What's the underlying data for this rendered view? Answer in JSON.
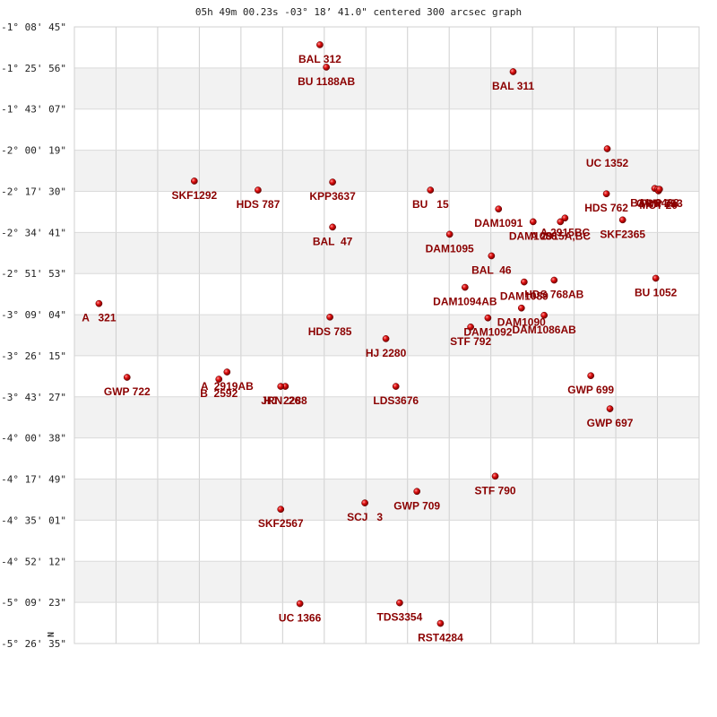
{
  "chart_data": {
    "type": "scatter",
    "title": "05h 49m 00.23s -03° 18’ 41.0\" centered 300 arcsec graph",
    "north_marker": "N",
    "x_range": [
      0,
      300
    ],
    "y_range": [
      0,
      300
    ],
    "y_ticks": [
      "-1° 08' 45\"",
      "-1° 25' 56\"",
      "-1° 43' 07\"",
      "-2° 00' 19\"",
      "-2° 17' 30\"",
      "-2° 34' 41\"",
      "-2° 51' 53\"",
      "-3° 09' 04\"",
      "-3° 26' 15\"",
      "-3° 43' 27\"",
      "-4° 00' 38\"",
      "-4° 17' 49\"",
      "-4° 35' 01\"",
      "-4° 52' 12\"",
      "-5° 09' 23\"",
      "-5° 26' 35\""
    ],
    "stars": [
      {
        "label": "BAL 312",
        "x": 117.9,
        "y": 8.7
      },
      {
        "label": "BU 1188AB",
        "x": 121.0,
        "y": 19.6
      },
      {
        "label": "BAL 311",
        "x": 210.7,
        "y": 21.8
      },
      {
        "label": "UC 1352",
        "x": 255.9,
        "y": 59.3
      },
      {
        "label": "SKF1292",
        "x": 57.6,
        "y": 75.0
      },
      {
        "label": "HDS 787",
        "x": 88.2,
        "y": 79.4
      },
      {
        "label": "KPP3637",
        "x": 124.0,
        "y": 75.5
      },
      {
        "label": "BU   15",
        "x": 171.0,
        "y": 79.4
      },
      {
        "label": "HDS 762",
        "x": 255.5,
        "y": 81.2
      },
      {
        "label": "BAL 2488",
        "x": 278.7,
        "y": 78.6
      },
      {
        "label": "TRN 25",
        "x": 280.1,
        "y": 79.0
      },
      {
        "label": "MCT 20",
        "x": 280.5,
        "y": 79.8
      },
      {
        "label": "GWP 713",
        "x": 281.0,
        "y": 79.0
      },
      {
        "label": "DAM1091",
        "x": 203.7,
        "y": 88.6
      },
      {
        "label": "DAM1088",
        "x": 220.3,
        "y": 94.8
      },
      {
        "label": "A 2915BC",
        "x": 235.6,
        "y": 93.0
      },
      {
        "label": "A 2915A,BC",
        "x": 233.4,
        "y": 94.8
      },
      {
        "label": "SKF2365",
        "x": 263.3,
        "y": 93.9
      },
      {
        "label": "BAL  47",
        "x": 124.0,
        "y": 97.4
      },
      {
        "label": "DAM1095",
        "x": 180.2,
        "y": 100.9
      },
      {
        "label": "BAL  46",
        "x": 200.3,
        "y": 111.4
      },
      {
        "label": "BU 1052",
        "x": 279.2,
        "y": 122.3
      },
      {
        "label": "DAM1094AB",
        "x": 187.6,
        "y": 126.7
      },
      {
        "label": "DAM1089",
        "x": 216.0,
        "y": 124.1
      },
      {
        "label": "HDS 768AB",
        "x": 230.4,
        "y": 123.2
      },
      {
        "label": "A   321",
        "x": 11.8,
        "y": 134.6
      },
      {
        "label": "HDS 785",
        "x": 122.7,
        "y": 141.2
      },
      {
        "label": "DAM1092",
        "x": 198.6,
        "y": 141.6
      },
      {
        "label": "DAM1090",
        "x": 214.7,
        "y": 136.8
      },
      {
        "label": "DAM1086AB",
        "x": 225.6,
        "y": 140.3
      },
      {
        "label": "STF 792",
        "x": 190.3,
        "y": 146.0
      },
      {
        "label": "HJ 2280",
        "x": 149.6,
        "y": 151.7
      },
      {
        "label": "GWP 722",
        "x": 25.3,
        "y": 170.5
      },
      {
        "label": "A  2919AB",
        "x": 73.3,
        "y": 167.9
      },
      {
        "label": "B  2592",
        "x": 69.4,
        "y": 171.4
      },
      {
        "label": "HJ  2288",
        "x": 101.3,
        "y": 174.9
      },
      {
        "label": "JRN  26",
        "x": 99.1,
        "y": 174.9
      },
      {
        "label": "LDS3676",
        "x": 154.4,
        "y": 174.9
      },
      {
        "label": "GWP 699",
        "x": 248.0,
        "y": 169.7
      },
      {
        "label": "GWP 697",
        "x": 257.2,
        "y": 185.8
      },
      {
        "label": "STF 790",
        "x": 202.1,
        "y": 218.6
      },
      {
        "label": "GWP 709",
        "x": 164.5,
        "y": 226.0
      },
      {
        "label": "SCJ   3",
        "x": 139.5,
        "y": 231.6
      },
      {
        "label": "SKF2567",
        "x": 99.1,
        "y": 234.7
      },
      {
        "label": "UC 1366",
        "x": 108.3,
        "y": 280.6
      },
      {
        "label": "TDS3354",
        "x": 156.2,
        "y": 280.2
      },
      {
        "label": "RST4284",
        "x": 175.8,
        "y": 290.2
      }
    ]
  }
}
